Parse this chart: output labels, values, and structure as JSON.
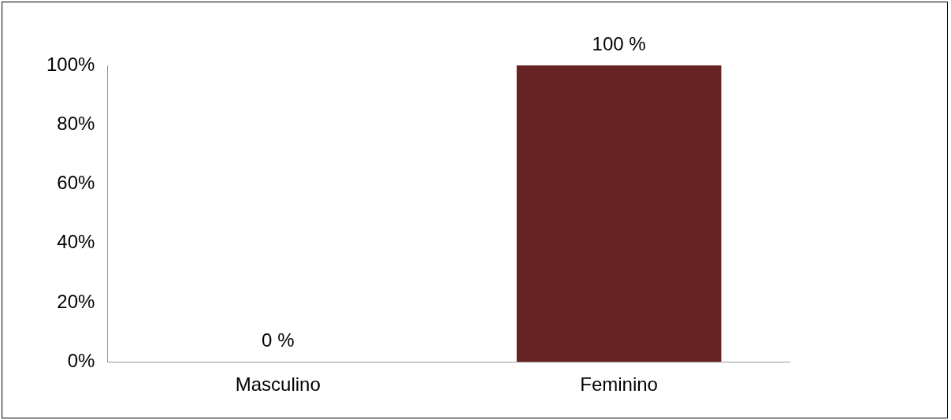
{
  "chart_data": {
    "type": "bar",
    "categories": [
      "Masculino",
      "Feminino"
    ],
    "colors": [
      "#5b6e2c",
      "#652423"
    ],
    "values": [
      0,
      100
    ],
    "value_labels": [
      "0 %",
      "100 %"
    ],
    "ylim": [
      0,
      100
    ],
    "yticks": [
      {
        "value": 0,
        "label": "0%"
      },
      {
        "value": 20,
        "label": "20%"
      },
      {
        "value": 40,
        "label": "40%"
      },
      {
        "value": 60,
        "label": "60%"
      },
      {
        "value": 80,
        "label": "80%"
      },
      {
        "value": 100,
        "label": "100%"
      }
    ],
    "grid": false,
    "legend": false
  }
}
